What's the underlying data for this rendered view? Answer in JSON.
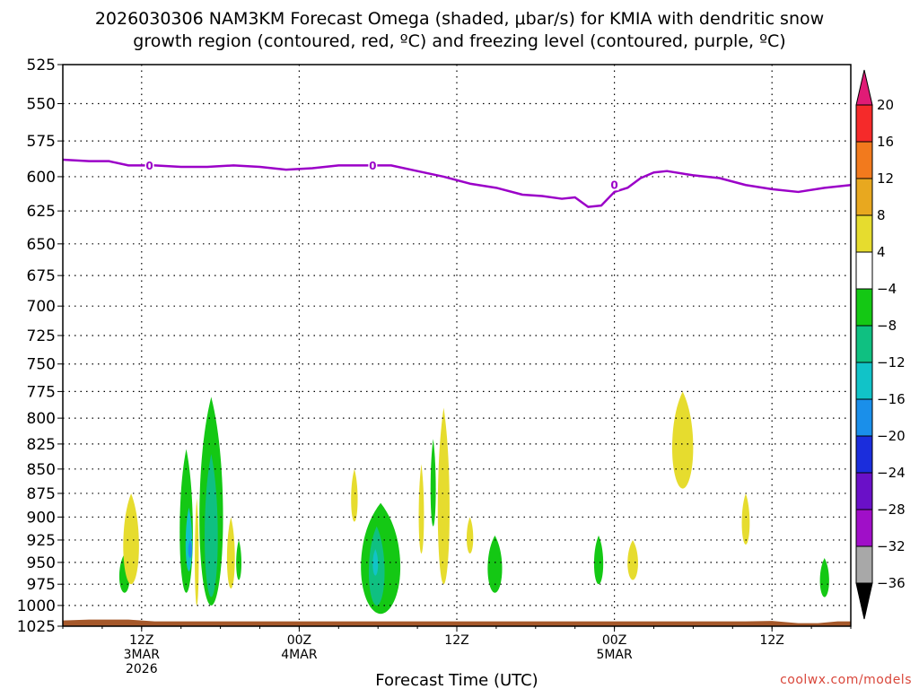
{
  "chart_data": {
    "type": "heatmap",
    "title_line1": "2026030306 NAM3KM Forecast Omega (shaded, μbar/s) for KMIA with dendritic snow",
    "title_line2": "growth region (contoured, red, ºC) and freezing level (contoured, purple, ºC)",
    "xlabel": "Forecast Time (UTC)",
    "ylabel": "",
    "x_range_hours": [
      6,
      66
    ],
    "y_range_hpa": [
      525,
      1025
    ],
    "y_ticks": [
      525,
      550,
      575,
      600,
      625,
      650,
      675,
      700,
      725,
      750,
      775,
      800,
      825,
      850,
      875,
      900,
      925,
      950,
      975,
      1000,
      1025
    ],
    "y_scale": "log-pressure",
    "grid": true,
    "x_ticks": [
      {
        "hour": 12,
        "label": "12Z",
        "label2": "3MAR",
        "label3": "2026"
      },
      {
        "hour": 24,
        "label": "00Z",
        "label2": "4MAR",
        "label3": ""
      },
      {
        "hour": 36,
        "label": "12Z",
        "label2": "",
        "label3": ""
      },
      {
        "hour": 48,
        "label": "00Z",
        "label2": "5MAR",
        "label3": ""
      },
      {
        "hour": 60,
        "label": "12Z",
        "label2": "",
        "label3": ""
      }
    ],
    "colorbar": {
      "labels": [
        "20",
        "16",
        "12",
        "8",
        "4",
        "−4",
        "−8",
        "−12",
        "−16",
        "−20",
        "−24",
        "−28",
        "−32",
        "−36"
      ],
      "colors": [
        "#e01b76",
        "#f52a2a",
        "#f27a1d",
        "#e8a81f",
        "#e6dc2e",
        "#ffffff",
        "#14c814",
        "#0fc081",
        "#11c3c8",
        "#1a8fea",
        "#1b2ddc",
        "#6a10c8",
        "#a00fc8",
        "#a8a8a8",
        "#000000"
      ]
    },
    "freezing_level": {
      "color": "#9b00c8",
      "label": "0",
      "label_points": [
        {
          "hour": 12.6,
          "hpa": 592
        },
        {
          "hour": 29.6,
          "hpa": 592
        },
        {
          "hour": 48.0,
          "hpa": 606
        }
      ],
      "points": [
        [
          6,
          588
        ],
        [
          8,
          589
        ],
        [
          9.5,
          589
        ],
        [
          11,
          592
        ],
        [
          13,
          592
        ],
        [
          15,
          593
        ],
        [
          17,
          593
        ],
        [
          19,
          592
        ],
        [
          21,
          593
        ],
        [
          23,
          595
        ],
        [
          25,
          594
        ],
        [
          27,
          592
        ],
        [
          29,
          592
        ],
        [
          31,
          592
        ],
        [
          33,
          596
        ],
        [
          35,
          600
        ],
        [
          37,
          605
        ],
        [
          39,
          608
        ],
        [
          41,
          613
        ],
        [
          42.5,
          614
        ],
        [
          44,
          616
        ],
        [
          45,
          615
        ],
        [
          46,
          622
        ],
        [
          47,
          621
        ],
        [
          48,
          611
        ],
        [
          49,
          608
        ],
        [
          50,
          601
        ],
        [
          51,
          597
        ],
        [
          52,
          596
        ],
        [
          54,
          599
        ],
        [
          56,
          601
        ],
        [
          58,
          606
        ],
        [
          60,
          609
        ],
        [
          62,
          611
        ],
        [
          64,
          608
        ],
        [
          66,
          606
        ]
      ]
    },
    "omega_regions": [
      {
        "level": -4,
        "hour": 10.7,
        "hpa_top": 940,
        "hpa_bot": 985,
        "halfwidth_h": 0.4
      },
      {
        "level": 4,
        "hour": 11.2,
        "hpa_top": 875,
        "hpa_bot": 975,
        "halfwidth_h": 0.6
      },
      {
        "level": -4,
        "hour": 15.4,
        "hpa_top": 830,
        "hpa_bot": 985,
        "halfwidth_h": 0.5
      },
      {
        "level": -4,
        "hour": 17.3,
        "hpa_top": 780,
        "hpa_bot": 1000,
        "halfwidth_h": 0.9
      },
      {
        "level": -8,
        "hour": 17.3,
        "hpa_top": 835,
        "hpa_bot": 990,
        "halfwidth_h": 0.5
      },
      {
        "level": -12,
        "hour": 15.6,
        "hpa_top": 890,
        "hpa_bot": 960,
        "halfwidth_h": 0.25
      },
      {
        "level": -16,
        "hour": 15.7,
        "hpa_top": 925,
        "hpa_bot": 945,
        "halfwidth_h": 0.15
      },
      {
        "level": 4,
        "hour": 16.2,
        "hpa_top": 880,
        "hpa_bot": 1000,
        "halfwidth_h": 0.15
      },
      {
        "level": 4,
        "hour": 18.8,
        "hpa_top": 900,
        "hpa_bot": 980,
        "halfwidth_h": 0.3
      },
      {
        "level": -4,
        "hour": 19.4,
        "hpa_top": 925,
        "hpa_bot": 970,
        "halfwidth_h": 0.2
      },
      {
        "level": 4,
        "hour": 28.2,
        "hpa_top": 850,
        "hpa_bot": 905,
        "halfwidth_h": 0.25
      },
      {
        "level": -4,
        "hour": 30.2,
        "hpa_top": 885,
        "hpa_bot": 1010,
        "halfwidth_h": 1.5
      },
      {
        "level": -8,
        "hour": 29.9,
        "hpa_top": 910,
        "hpa_bot": 1000,
        "halfwidth_h": 0.6
      },
      {
        "level": -12,
        "hour": 29.8,
        "hpa_top": 935,
        "hpa_bot": 965,
        "halfwidth_h": 0.2
      },
      {
        "level": 4,
        "hour": 33.3,
        "hpa_top": 845,
        "hpa_bot": 940,
        "halfwidth_h": 0.2
      },
      {
        "level": -4,
        "hour": 34.2,
        "hpa_top": 820,
        "hpa_bot": 910,
        "halfwidth_h": 0.2
      },
      {
        "level": 4,
        "hour": 35.0,
        "hpa_top": 790,
        "hpa_bot": 975,
        "halfwidth_h": 0.45
      },
      {
        "level": 4,
        "hour": 37.0,
        "hpa_top": 900,
        "hpa_bot": 940,
        "halfwidth_h": 0.25
      },
      {
        "level": -4,
        "hour": 38.9,
        "hpa_top": 920,
        "hpa_bot": 985,
        "halfwidth_h": 0.55
      },
      {
        "level": -4,
        "hour": 46.8,
        "hpa_top": 920,
        "hpa_bot": 975,
        "halfwidth_h": 0.35
      },
      {
        "level": 4,
        "hour": 49.4,
        "hpa_top": 925,
        "hpa_bot": 970,
        "halfwidth_h": 0.4
      },
      {
        "level": 4,
        "hour": 53.2,
        "hpa_top": 775,
        "hpa_bot": 870,
        "halfwidth_h": 0.8
      },
      {
        "level": 4,
        "hour": 58.0,
        "hpa_top": 875,
        "hpa_bot": 930,
        "halfwidth_h": 0.3
      },
      {
        "level": -4,
        "hour": 64.0,
        "hpa_top": 945,
        "hpa_bot": 990,
        "halfwidth_h": 0.35
      }
    ],
    "terrain": {
      "color": "#a5582a",
      "hpa_top": 1018
    }
  },
  "credit": "coolwx.com/models"
}
